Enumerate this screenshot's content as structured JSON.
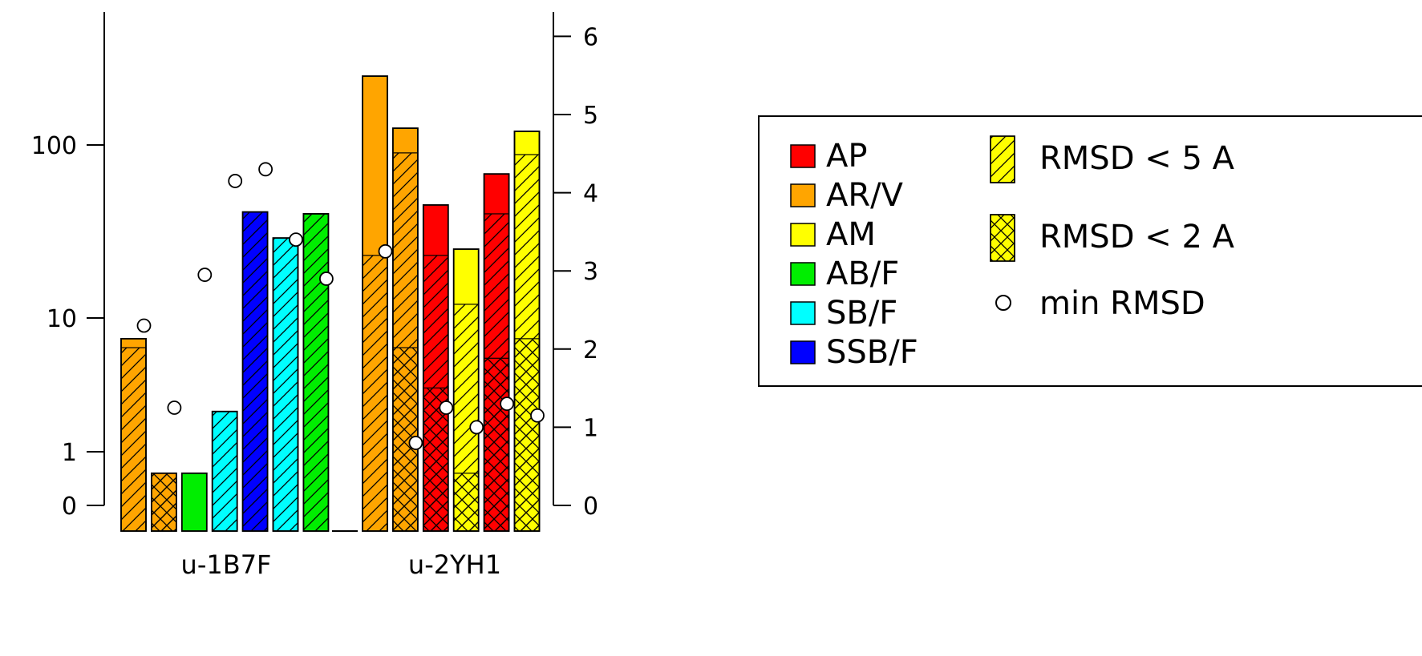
{
  "chart_data": {
    "type": "bar",
    "groups": [
      "u-1B7F",
      "u-2YH1"
    ],
    "left_axis": {
      "scale": "log-like (count)",
      "ticks": [
        {
          "value": 0,
          "label": "0"
        },
        {
          "value": 1,
          "label": "1"
        },
        {
          "value": 10,
          "label": "10"
        },
        {
          "value": 100,
          "label": "100"
        }
      ]
    },
    "right_axis": {
      "scale": "linear (min RMSD, A)",
      "ylim": [
        0,
        6
      ],
      "ticks": [
        {
          "value": 0,
          "label": "0"
        },
        {
          "value": 1,
          "label": "1"
        },
        {
          "value": 2,
          "label": "2"
        },
        {
          "value": 3,
          "label": "3"
        },
        {
          "value": 4,
          "label": "4"
        },
        {
          "value": 5,
          "label": "5"
        },
        {
          "value": 6,
          "label": "6"
        }
      ]
    },
    "bars": [
      {
        "group": "u-1B7F",
        "method": "AR/V",
        "total": 7,
        "rmsd_lt5": 6,
        "rmsd_lt2": 0,
        "min_rmsd": 2.3
      },
      {
        "group": "u-1B7F",
        "method": "AR/V",
        "total": 0.6,
        "rmsd_lt5": 0.6,
        "rmsd_lt2": 0.6,
        "min_rmsd": 1.25
      },
      {
        "group": "u-1B7F",
        "method": "AB/F",
        "total": 0.6,
        "rmsd_lt5": 0,
        "rmsd_lt2": 0,
        "min_rmsd": 2.95
      },
      {
        "group": "u-1B7F",
        "method": "SB/F",
        "total": 2,
        "rmsd_lt5": 2,
        "rmsd_lt2": 0,
        "min_rmsd": 4.15
      },
      {
        "group": "u-1B7F",
        "method": "SSB/F",
        "total": 41,
        "rmsd_lt5": 41,
        "rmsd_lt2": 0,
        "min_rmsd": 4.3
      },
      {
        "group": "u-1B7F",
        "method": "SB/F",
        "total": 29,
        "rmsd_lt5": 29,
        "rmsd_lt2": 0,
        "min_rmsd": 3.4
      },
      {
        "group": "u-1B7F",
        "method": "AB/F",
        "total": 40,
        "rmsd_lt5": 40,
        "rmsd_lt2": 0,
        "min_rmsd": 2.9
      },
      {
        "group": "u-2YH1",
        "method": "AR/V",
        "total": 250,
        "rmsd_lt5": 23,
        "rmsd_lt2": 0,
        "min_rmsd": 3.25
      },
      {
        "group": "u-2YH1",
        "method": "AR/V",
        "total": 125,
        "rmsd_lt5": 90,
        "rmsd_lt2": 6,
        "min_rmsd": 0.8
      },
      {
        "group": "u-2YH1",
        "method": "AP",
        "total": 45,
        "rmsd_lt5": 23,
        "rmsd_lt2": 3,
        "min_rmsd": 1.25
      },
      {
        "group": "u-2YH1",
        "method": "AM",
        "total": 25,
        "rmsd_lt5": 12,
        "rmsd_lt2": 0.6,
        "min_rmsd": 1.0
      },
      {
        "group": "u-2YH1",
        "method": "AP",
        "total": 68,
        "rmsd_lt5": 40,
        "rmsd_lt2": 5,
        "min_rmsd": 1.3
      },
      {
        "group": "u-2YH1",
        "method": "AM",
        "total": 120,
        "rmsd_lt5": 88,
        "rmsd_lt2": 7,
        "min_rmsd": 1.15
      }
    ],
    "legend": {
      "placement": "right",
      "methods": [
        {
          "label": "AP",
          "color": "#ff0000"
        },
        {
          "label": "AR/V",
          "color": "#ffa500"
        },
        {
          "label": "AM",
          "color": "#ffff00"
        },
        {
          "label": "AB/F",
          "color": "#00ee00"
        },
        {
          "label": "SB/F",
          "color": "#00ffff"
        },
        {
          "label": "SSB/F",
          "color": "#0000ff"
        }
      ],
      "patterns": [
        {
          "label": "RMSD < 5 A",
          "pattern": "single-hatch"
        },
        {
          "label": "RMSD < 2 A",
          "pattern": "cross-hatch"
        },
        {
          "label": "min RMSD",
          "pattern": "open-circle"
        }
      ]
    }
  }
}
